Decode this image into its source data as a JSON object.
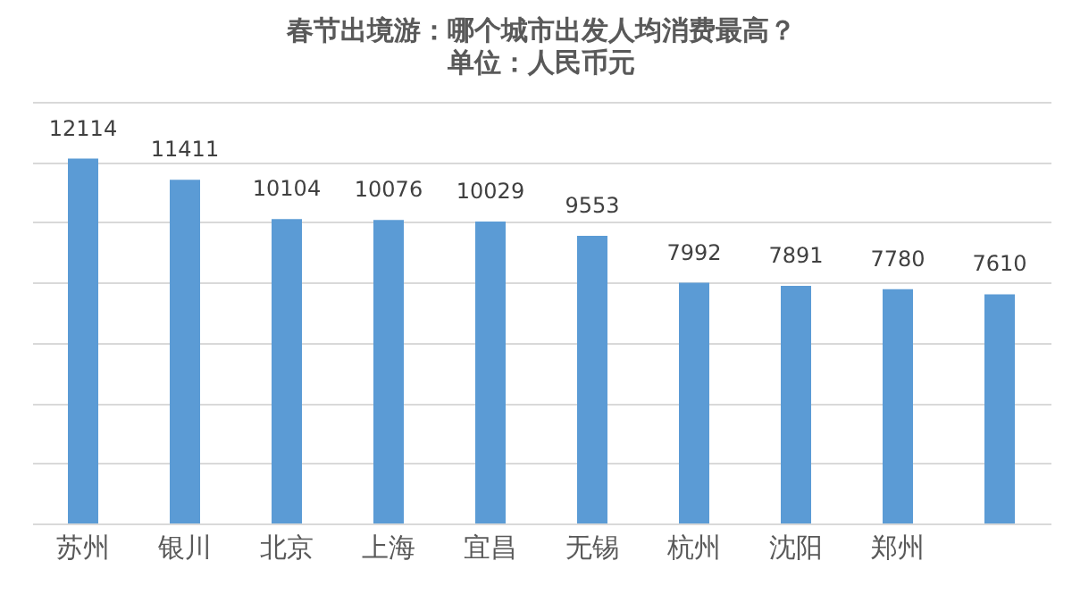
{
  "chart_data": {
    "type": "bar",
    "title": "春节出境游：哪个城市出发人均消费最高？",
    "subtitle": "单位：人民币元",
    "categories": [
      "苏州",
      "银川",
      "北京",
      "上海",
      "宜昌",
      "无锡",
      "杭州",
      "沈阳",
      "郑州",
      null
    ],
    "values": [
      12114,
      11411,
      10104,
      10076,
      10029,
      9553,
      7992,
      7891,
      7780,
      7610
    ],
    "color": "#5b9bd5",
    "data_labels": true,
    "grid": "y",
    "tick_labels": "x",
    "ylim": [
      0,
      14000
    ],
    "yticks": [
      {
        "value": 0,
        "label": null
      },
      {
        "value": 2000,
        "label": null
      },
      {
        "value": 4000,
        "label": null
      },
      {
        "value": 6000,
        "label": null
      },
      {
        "value": 8000,
        "label": null
      },
      {
        "value": 10000,
        "label": null
      },
      {
        "value": 12000,
        "label": null
      },
      {
        "value": 14000,
        "label": null
      }
    ]
  }
}
